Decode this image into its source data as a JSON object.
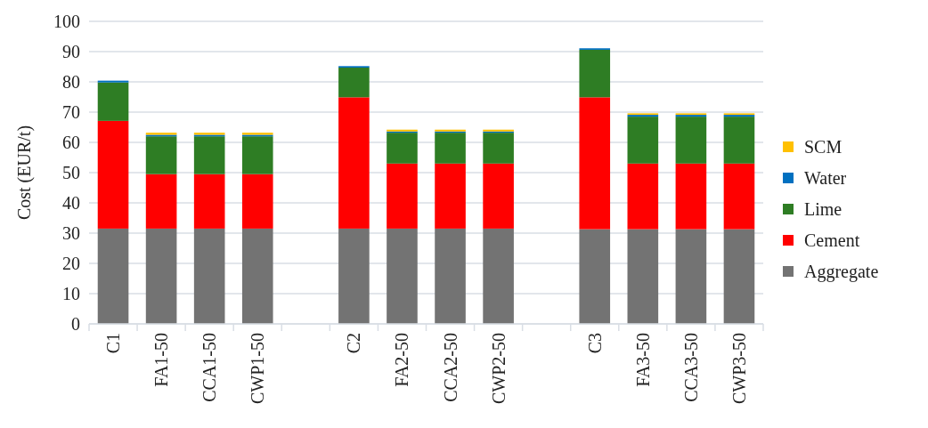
{
  "chart_data": {
    "type": "bar",
    "stacked": true,
    "ylabel": "Cost (EUR/t)",
    "categories": [
      "C1",
      "FA1-50",
      "CCA1-50",
      "CWP1-50",
      null,
      "C2",
      "FA2-50",
      "CCA2-50",
      "CWP2-50",
      null,
      "C3",
      "FA3-50",
      "CCA3-50",
      "CWP3-50"
    ],
    "series": [
      {
        "name": "Aggregate",
        "color": "#737373",
        "values": [
          31.5,
          31.5,
          31.5,
          31.5,
          null,
          31.5,
          31.5,
          31.5,
          31.5,
          null,
          31.3,
          31.3,
          31.3,
          31.3
        ]
      },
      {
        "name": "Cement",
        "color": "#ff0000",
        "values": [
          35.6,
          18,
          18,
          18,
          null,
          43.4,
          21.5,
          21.5,
          21.5,
          null,
          43.6,
          21.7,
          21.7,
          21.7
        ]
      },
      {
        "name": "Lime",
        "color": "#2e7d24",
        "values": [
          12.7,
          12.5,
          12.5,
          12.5,
          null,
          9.8,
          10.2,
          10.2,
          10.2,
          null,
          15.7,
          15.5,
          15.5,
          15.5
        ]
      },
      {
        "name": "Water",
        "color": "#0070c0",
        "values": [
          0.6,
          0.5,
          0.5,
          0.5,
          null,
          0.5,
          0.4,
          0.4,
          0.4,
          null,
          0.5,
          0.6,
          0.6,
          0.6
        ]
      },
      {
        "name": "SCM",
        "color": "#ffc000",
        "values": [
          0,
          0.7,
          0.7,
          0.7,
          null,
          0,
          0.6,
          0.6,
          0.6,
          null,
          0,
          0.5,
          0.5,
          0.5
        ]
      }
    ],
    "ylim": [
      0,
      100
    ],
    "yticks": [
      0,
      10,
      20,
      30,
      40,
      50,
      60,
      70,
      80,
      90,
      100
    ],
    "grid": "y",
    "legend": "right"
  }
}
